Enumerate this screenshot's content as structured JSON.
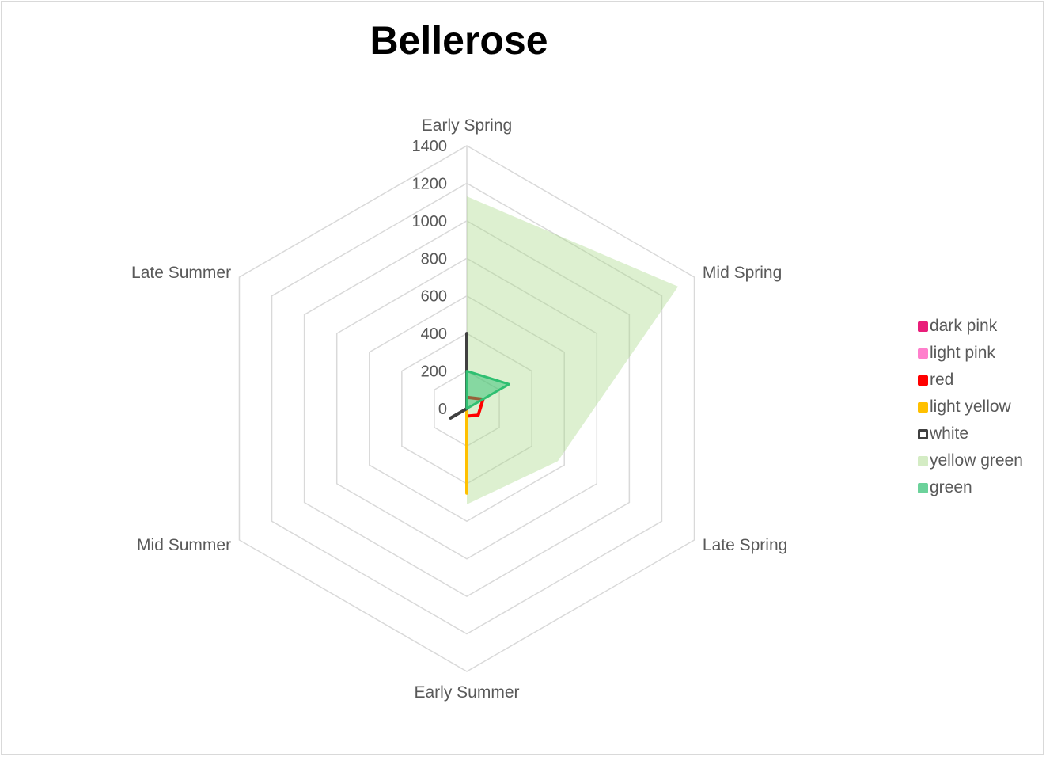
{
  "chart_data": {
    "type": "radar",
    "title": "Bellerose",
    "categories": [
      "Early Spring",
      "Mid Spring",
      "Late Spring",
      "Early Summer",
      "Mid Summer",
      "Late Summer"
    ],
    "rmax": 1400,
    "ticks": [
      0,
      200,
      400,
      600,
      800,
      1000,
      1200,
      1400
    ],
    "grid": true,
    "legend_position": "right",
    "series": [
      {
        "name": "dark pink",
        "values": [
          150,
          0,
          0,
          0,
          0,
          0
        ],
        "color": "#e91e7a",
        "style": "line"
      },
      {
        "name": "light pink",
        "values": [
          0,
          0,
          0,
          0,
          0,
          0
        ],
        "color": "#ff7fcc",
        "style": "line"
      },
      {
        "name": "red",
        "values": [
          60,
          100,
          70,
          40,
          0,
          0
        ],
        "color": "#ff0000",
        "style": "line"
      },
      {
        "name": "light yellow",
        "values": [
          0,
          0,
          0,
          450,
          0,
          0
        ],
        "color": "#ffc000",
        "style": "line"
      },
      {
        "name": "white",
        "values": [
          400,
          0,
          0,
          0,
          100,
          0
        ],
        "color": "#404040",
        "style": "line"
      },
      {
        "name": "yellow green",
        "values": [
          1130,
          1300,
          560,
          510,
          0,
          0
        ],
        "color": "#a9d98a",
        "style": "area"
      },
      {
        "name": "green",
        "values": [
          200,
          260,
          0,
          0,
          0,
          0
        ],
        "color": "#2fbf71",
        "style": "area-outline"
      }
    ]
  }
}
